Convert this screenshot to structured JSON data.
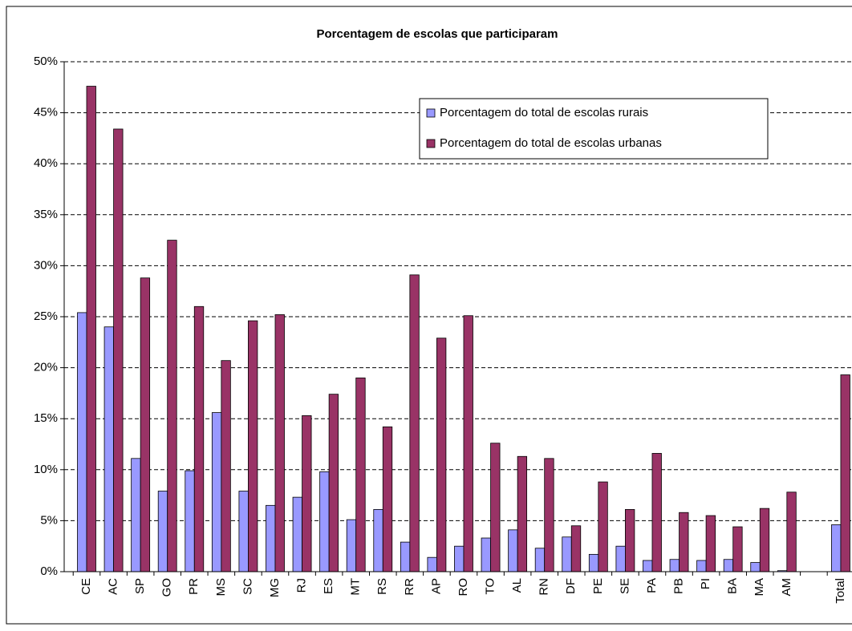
{
  "chart_data": {
    "type": "bar",
    "title": "Porcentagem de escolas que participaram",
    "categories": [
      "CE",
      "AC",
      "SP",
      "GO",
      "PR",
      "MS",
      "SC",
      "MG",
      "RJ",
      "ES",
      "MT",
      "RS",
      "RR",
      "AP",
      "RO",
      "TO",
      "AL",
      "RN",
      "DF",
      "PE",
      "SE",
      "PA",
      "PB",
      "PI",
      "BA",
      "MA",
      "AM",
      null,
      "Total"
    ],
    "series": [
      {
        "name": "Porcentagem do total de escolas rurais",
        "color": "#9999ff",
        "values": [
          25.4,
          24.0,
          11.1,
          7.9,
          9.9,
          15.6,
          7.9,
          6.5,
          7.3,
          9.8,
          5.1,
          6.1,
          2.9,
          1.4,
          2.5,
          3.3,
          4.1,
          2.3,
          3.4,
          1.7,
          2.5,
          1.1,
          1.2,
          1.1,
          1.2,
          0.9,
          0.1,
          null,
          4.6
        ]
      },
      {
        "name": "Porcentagem do total de escolas urbanas",
        "color": "#993366",
        "values": [
          47.6,
          43.4,
          28.8,
          32.5,
          26.0,
          20.7,
          24.6,
          25.2,
          15.3,
          17.4,
          19.0,
          14.2,
          29.1,
          22.9,
          25.1,
          12.6,
          11.3,
          11.1,
          4.5,
          8.8,
          6.1,
          11.6,
          5.8,
          5.5,
          4.4,
          6.2,
          7.8,
          null,
          19.3
        ]
      }
    ],
    "ylim": [
      0,
      50
    ],
    "yticks": [
      {
        "value": 0,
        "label": "0%"
      },
      {
        "value": 5,
        "label": "5%"
      },
      {
        "value": 10,
        "label": "10%"
      },
      {
        "value": 15,
        "label": "15%"
      },
      {
        "value": 20,
        "label": "20%"
      },
      {
        "value": 25,
        "label": "25%"
      },
      {
        "value": 30,
        "label": "30%"
      },
      {
        "value": 35,
        "label": "35%"
      },
      {
        "value": 40,
        "label": "40%"
      },
      {
        "value": 45,
        "label": "45%"
      },
      {
        "value": 50,
        "label": "50%"
      }
    ],
    "grid": true
  }
}
